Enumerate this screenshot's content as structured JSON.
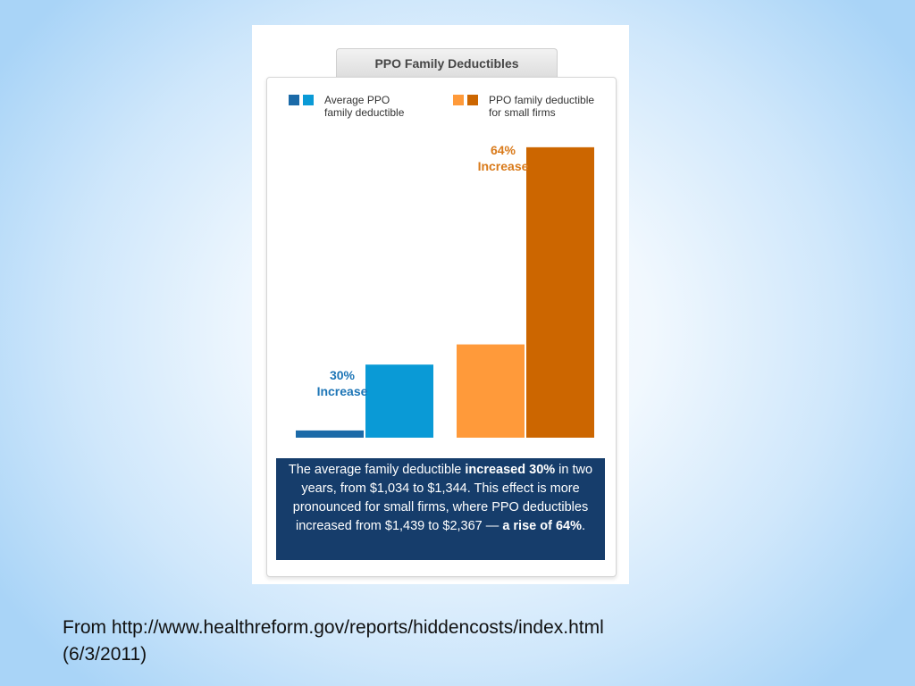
{
  "figure": {
    "title": "PPO Family Deductibles"
  },
  "colors": {
    "avg_dark": "#1b6aa8",
    "avg_light": "#0a9ad6",
    "small_light": "#ff9a3a",
    "small_dark": "#cc6600",
    "summary_bg": "#163d6b"
  },
  "chart_data": {
    "type": "bar",
    "groups": [
      "Average PPO family deductible",
      "PPO family deductible for small firms"
    ],
    "series": [
      {
        "name": "Average PPO family deductible",
        "values": [
          1034,
          1344
        ]
      },
      {
        "name": "PPO family deductible for small firms",
        "values": [
          1439,
          2367
        ]
      }
    ],
    "ylim": [
      1000,
      2400
    ],
    "grid": false,
    "legend_placement": "top",
    "annotations": {
      "avg": [
        "30%",
        "Increase"
      ],
      "small": [
        "64%",
        "Increase"
      ]
    }
  },
  "legend": {
    "avg": "Average PPO\nfamily deductible",
    "small": "PPO family deductible\nfor small firms"
  },
  "summary": {
    "part1": "The average family deductible ",
    "bold1": "increased 30%",
    "part2": " in  two years, from $1,034 to $1,344. This effect is more pronounced for small firms, where PPO deductibles increased from $1,439 to $2,367 — ",
    "bold2": "a rise of 64%",
    "part3": "."
  },
  "caption": {
    "line1": "From http://www.healthreform.gov/reports/hiddencosts/index.html",
    "line2": "(6/3/2011)"
  }
}
